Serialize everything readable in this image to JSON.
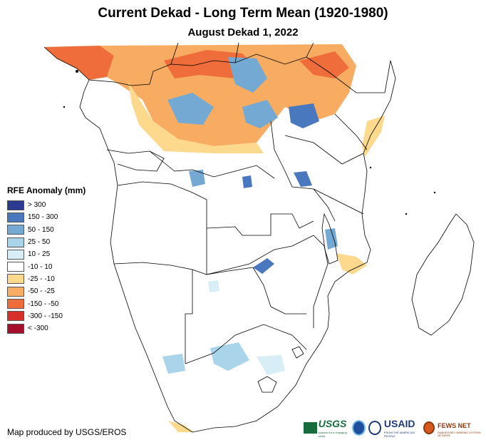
{
  "title": "Current Dekad - Long Term Mean (1920-1980)",
  "subtitle": "August Dekad 1, 2022",
  "legend": {
    "title": "RFE Anomaly (mm)",
    "items": [
      {
        "label": "> 300",
        "color": "#2b3990"
      },
      {
        "label": "150 - 300",
        "color": "#4a78be"
      },
      {
        "label": "50 - 150",
        "color": "#74a9d4"
      },
      {
        "label": "25 - 50",
        "color": "#a9d4ea"
      },
      {
        "label": "10 - 25",
        "color": "#d8eef7"
      },
      {
        "label": "-10 - 10",
        "color": "#ffffff"
      },
      {
        "label": "-25 - -10",
        "color": "#fdd98e"
      },
      {
        "label": "-50 - -25",
        "color": "#f8ac61"
      },
      {
        "label": "-150 - -50",
        "color": "#ee6d3a"
      },
      {
        "label": "-300 - -150",
        "color": "#d7302a"
      },
      {
        "label": "< -300",
        "color": "#a50f2c"
      }
    ]
  },
  "credit": "Map produced by USGS/EROS",
  "logos": {
    "usgs": "USGS",
    "usgs_tagline": "science for a changing world",
    "usaid": "USAID",
    "usaid_tagline": "FROM THE AMERICAN PEOPLE",
    "fews": "FEWS NET",
    "fews_tagline": "FAMINE EARLY WARNING SYSTEMS NETWORK"
  }
}
